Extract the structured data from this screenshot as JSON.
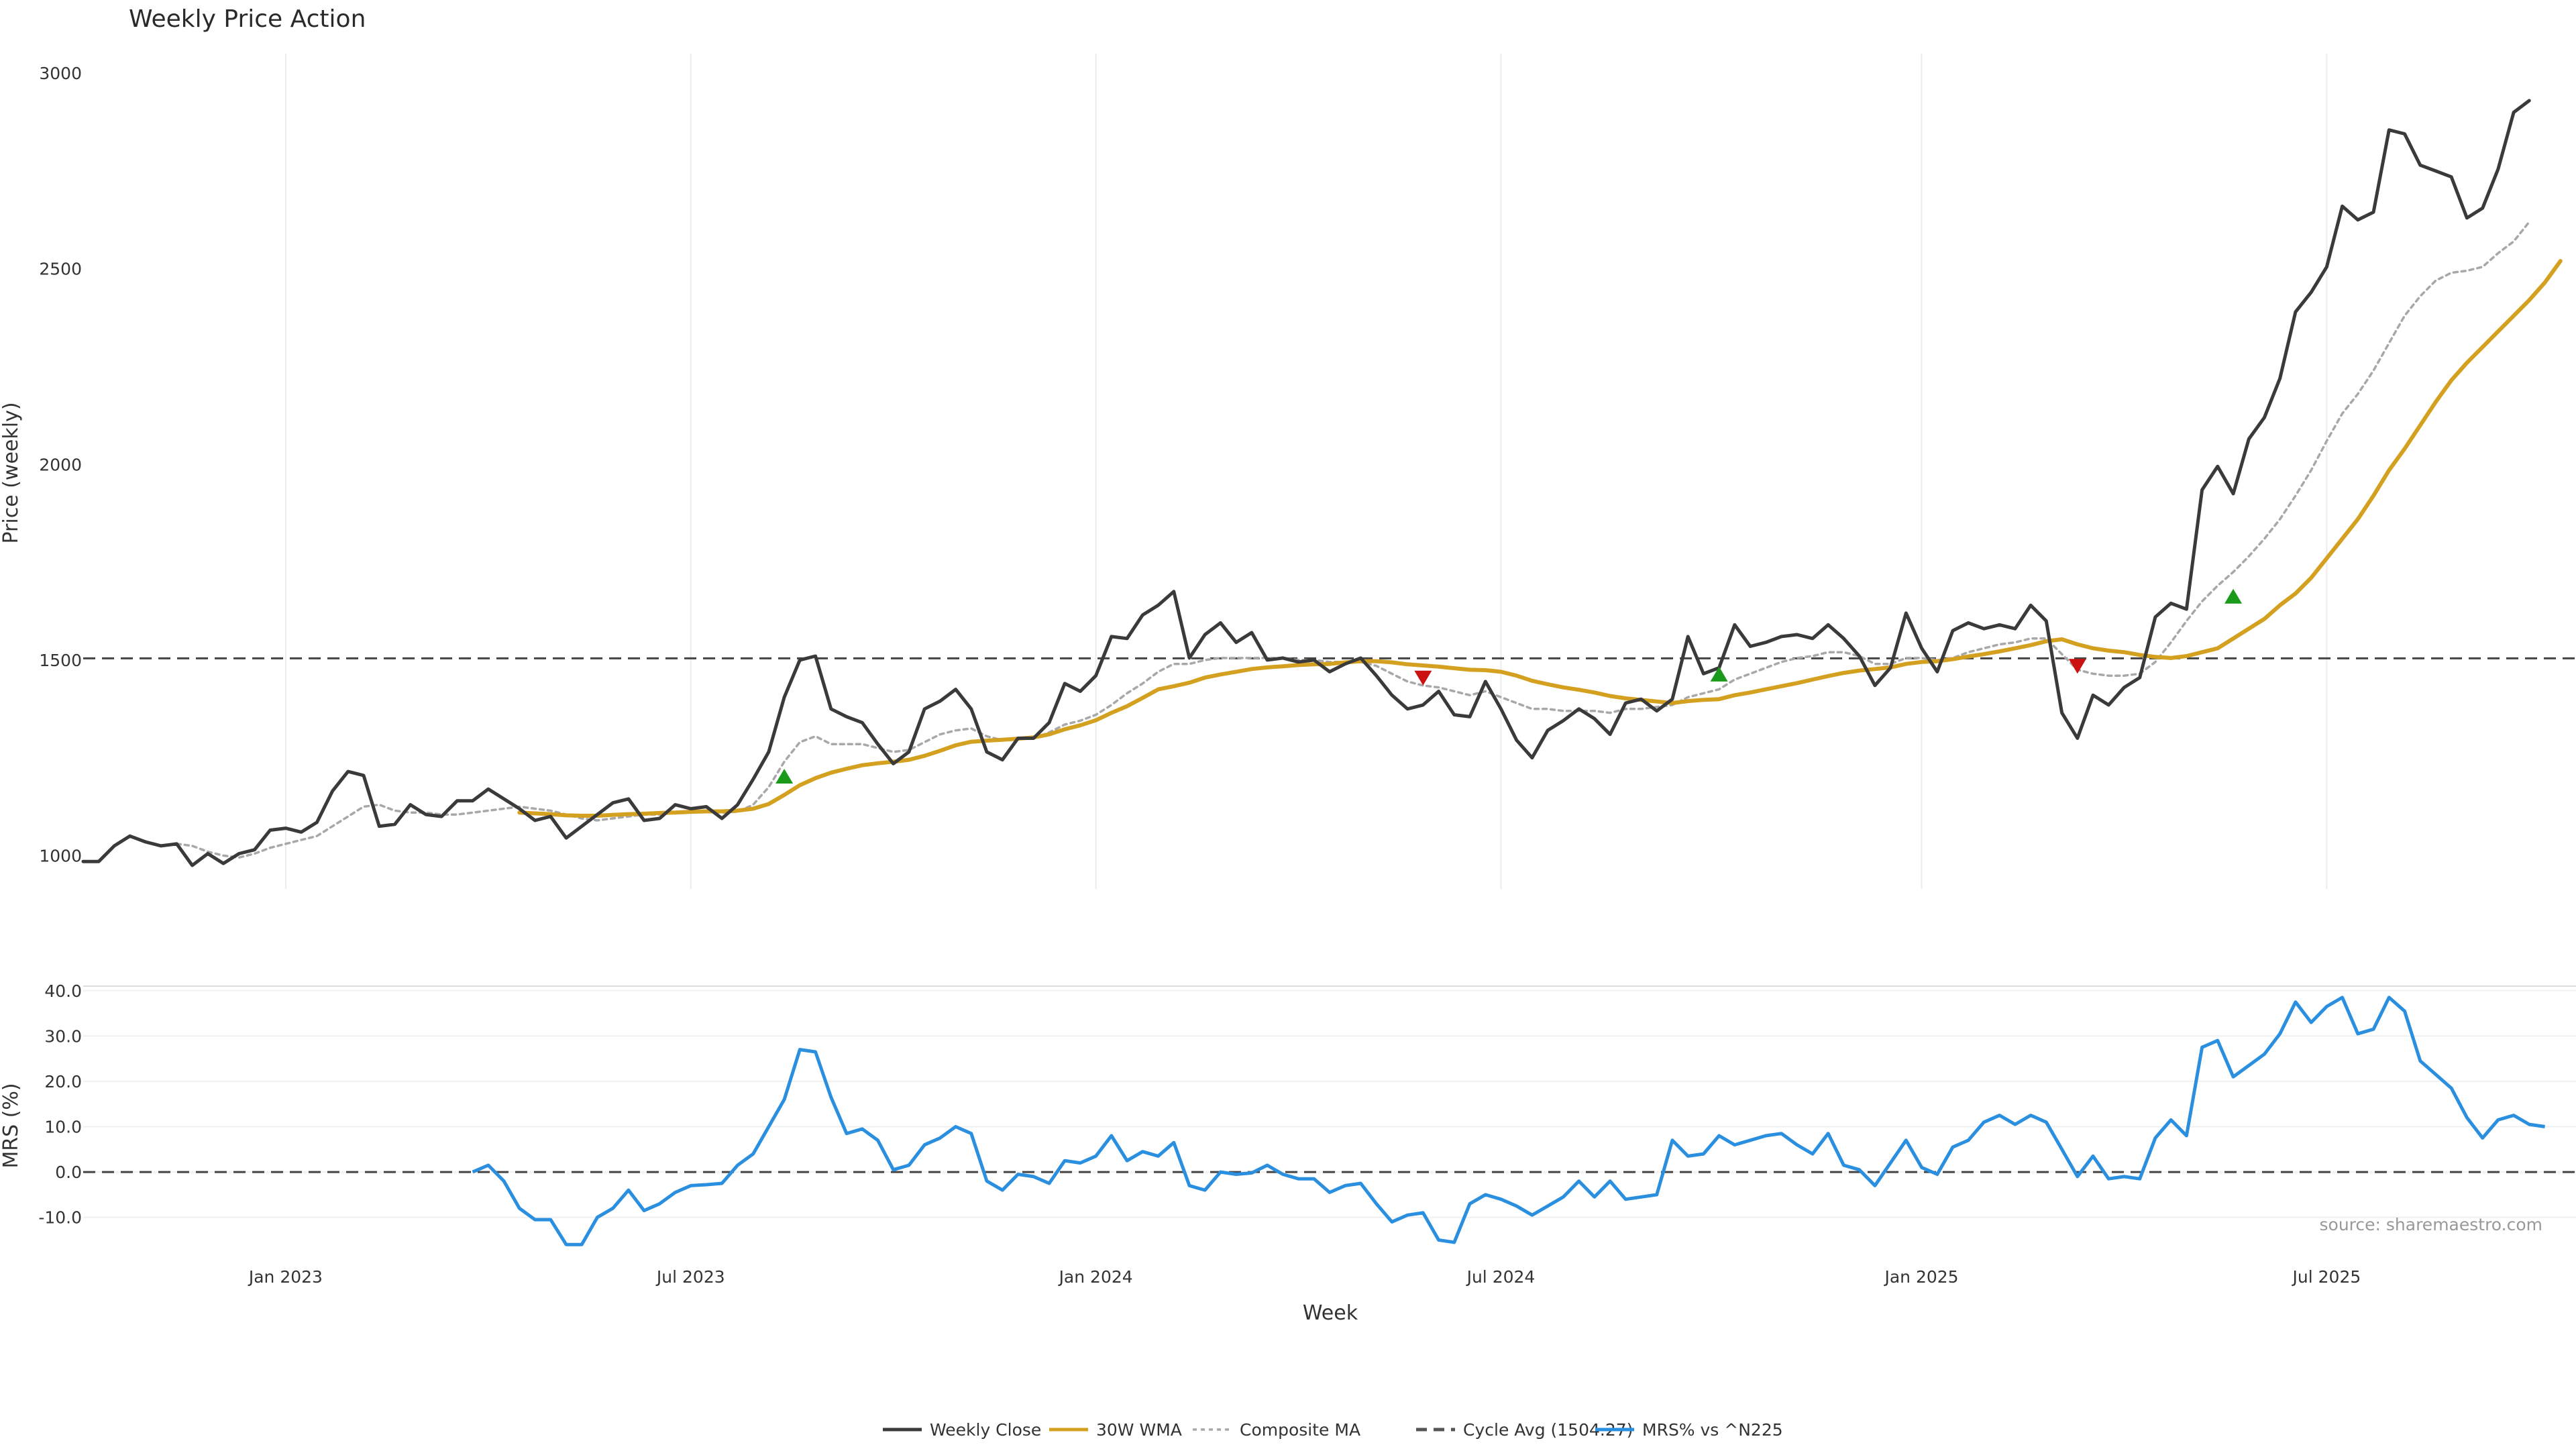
{
  "chart_data": [
    {
      "type": "line",
      "title": "Weekly Price Action",
      "ylabel": "Price (weekly)",
      "ylim": [
        915,
        3050
      ],
      "yticks": [
        1000,
        1500,
        2000,
        2500,
        3000
      ],
      "x_domain": [
        "2022-10-03",
        "2025-10-27"
      ],
      "x_step": "weekly",
      "grid": "vertical",
      "series": [
        {
          "name": "Weekly Close",
          "color": "#3a3a3a",
          "values": [
            985,
            985,
            1025,
            1050,
            1035,
            1025,
            1030,
            975,
            1005,
            980,
            1005,
            1015,
            1065,
            1070,
            1060,
            1085,
            1165,
            1215,
            1205,
            1075,
            1080,
            1130,
            1105,
            1100,
            1140,
            1140,
            1170,
            1145,
            1120,
            1090,
            1100,
            1045,
            1075,
            1105,
            1135,
            1145,
            1090,
            1095,
            1130,
            1120,
            1125,
            1095,
            1130,
            1195,
            1265,
            1405,
            1500,
            1510,
            1375,
            1355,
            1340,
            1285,
            1235,
            1265,
            1375,
            1395,
            1425,
            1375,
            1265,
            1245,
            1300,
            1300,
            1340,
            1440,
            1420,
            1460,
            1560,
            1555,
            1615,
            1640,
            1675,
            1505,
            1565,
            1595,
            1545,
            1570,
            1500,
            1505,
            1495,
            1500,
            1470,
            1490,
            1505,
            1460,
            1410,
            1375,
            1385,
            1420,
            1360,
            1355,
            1445,
            1375,
            1295,
            1250,
            1320,
            1345,
            1375,
            1350,
            1310,
            1390,
            1400,
            1370,
            1400,
            1560,
            1465,
            1480,
            1590,
            1535,
            1545,
            1560,
            1565,
            1555,
            1590,
            1555,
            1510,
            1435,
            1480,
            1620,
            1530,
            1470,
            1575,
            1595,
            1580,
            1590,
            1580,
            1640,
            1600,
            1365,
            1300,
            1410,
            1385,
            1430,
            1455,
            1610,
            1645,
            1630,
            1935,
            1995,
            1925,
            2065,
            2120,
            2220,
            2390,
            2440,
            2505,
            2660,
            2625,
            2645,
            2855,
            2845,
            2765,
            2750,
            2735,
            2630,
            2655,
            2755,
            2900,
            2930
          ]
        },
        {
          "name": "30W WMA",
          "color": "#d4a020",
          "values": [
            null,
            null,
            null,
            null,
            null,
            null,
            null,
            null,
            null,
            null,
            null,
            null,
            null,
            null,
            null,
            null,
            null,
            null,
            null,
            null,
            null,
            null,
            null,
            null,
            null,
            null,
            null,
            null,
            1110,
            1108,
            1106,
            1103,
            1102,
            1102,
            1104,
            1106,
            1107,
            1109,
            1110,
            1112,
            1113,
            1113,
            1115,
            1120,
            1132,
            1155,
            1180,
            1198,
            1212,
            1222,
            1231,
            1236,
            1240,
            1245,
            1255,
            1268,
            1282,
            1291,
            1294,
            1296,
            1299,
            1302,
            1310,
            1323,
            1333,
            1346,
            1365,
            1382,
            1403,
            1425,
            1433,
            1442,
            1455,
            1463,
            1470,
            1477,
            1481,
            1484,
            1487,
            1489,
            1490,
            1494,
            1497,
            1497,
            1494,
            1489,
            1486,
            1483,
            1479,
            1475,
            1474,
            1470,
            1460,
            1447,
            1438,
            1430,
            1424,
            1417,
            1408,
            1402,
            1398,
            1394,
            1390,
            1395,
            1398,
            1400,
            1410,
            1417,
            1425,
            1433,
            1441,
            1450,
            1459,
            1467,
            1473,
            1477,
            1481,
            1490,
            1495,
            1497,
            1502,
            1509,
            1515,
            1522,
            1530,
            1538,
            1548,
            1553,
            1540,
            1530,
            1524,
            1520,
            1513,
            1508,
            1505,
            1510,
            1520,
            1530,
            1555,
            1580,
            1605,
            1640,
            1670,
            1710,
            1760,
            1810,
            1860,
            1920,
            1985,
            2040,
            2100,
            2160,
            2215,
            2260,
            2300,
            2340,
            2380,
            2420,
            2465,
            2520
          ]
        },
        {
          "name": "Composite MA",
          "color": "#a8a8a8",
          "values": [
            null,
            null,
            null,
            null,
            null,
            null,
            1030,
            1025,
            1010,
            1000,
            995,
            1005,
            1020,
            1030,
            1040,
            1050,
            1075,
            1100,
            1125,
            1130,
            1115,
            1110,
            1110,
            1105,
            1105,
            1110,
            1115,
            1120,
            1125,
            1120,
            1115,
            1105,
            1095,
            1090,
            1095,
            1100,
            1105,
            1105,
            1110,
            1110,
            1112,
            1110,
            1112,
            1130,
            1175,
            1240,
            1290,
            1305,
            1285,
            1285,
            1285,
            1275,
            1265,
            1270,
            1290,
            1310,
            1320,
            1325,
            1305,
            1295,
            1300,
            1300,
            1315,
            1335,
            1345,
            1360,
            1385,
            1415,
            1440,
            1470,
            1490,
            1490,
            1500,
            1505,
            1505,
            1505,
            1505,
            1505,
            1500,
            1500,
            1495,
            1495,
            1495,
            1485,
            1465,
            1445,
            1435,
            1430,
            1420,
            1410,
            1420,
            1405,
            1390,
            1375,
            1375,
            1370,
            1370,
            1370,
            1365,
            1375,
            1375,
            1380,
            1385,
            1405,
            1415,
            1425,
            1450,
            1465,
            1480,
            1495,
            1505,
            1510,
            1520,
            1520,
            1510,
            1490,
            1490,
            1505,
            1505,
            1500,
            1505,
            1520,
            1530,
            1540,
            1545,
            1555,
            1555,
            1515,
            1475,
            1465,
            1460,
            1460,
            1465,
            1495,
            1545,
            1600,
            1650,
            1690,
            1725,
            1765,
            1810,
            1860,
            1920,
            1985,
            2060,
            2130,
            2180,
            2240,
            2310,
            2380,
            2430,
            2470,
            2490,
            2495,
            2505,
            2540,
            2570,
            2620
          ]
        }
      ],
      "reference_line": {
        "name": "Cycle Avg (1504.27)",
        "value": 1504.27
      },
      "markers": [
        {
          "type": "buy",
          "color": "#1a9a1a",
          "index": 45,
          "value": 1202
        },
        {
          "type": "sell",
          "color": "#cc1111",
          "index": 86,
          "value": 1455
        },
        {
          "type": "buy",
          "color": "#1a9a1a",
          "index": 105,
          "value": 1463
        },
        {
          "type": "sell",
          "color": "#cc1111",
          "index": 128,
          "value": 1485
        },
        {
          "type": "buy",
          "color": "#1a9a1a",
          "index": 138,
          "value": 1662
        }
      ]
    },
    {
      "type": "line",
      "ylabel": "MRS (%)",
      "xlabel": "Week",
      "ylim": [
        -17,
        41
      ],
      "yticks": [
        "40.0",
        "30.0",
        "20.0",
        "10.0",
        "0.0",
        "-10.0"
      ],
      "x_ticks": [
        "Jan 2023",
        "Jul 2023",
        "Jan 2024",
        "Jul 2024",
        "Jan 2025",
        "Jul 2025"
      ],
      "series": [
        {
          "name": "MRS% vs ^N225",
          "color": "#2b8fe0",
          "start_index": 25,
          "values": [
            0,
            1.5,
            -2,
            -8,
            -10.5,
            -10.5,
            -16,
            -16,
            -10,
            -8,
            -4,
            -8.5,
            -7,
            -4.5,
            -3,
            -2.8,
            -2.5,
            1.5,
            4,
            10,
            16,
            27,
            26.5,
            16.5,
            8.5,
            9.5,
            7,
            0.5,
            1.5,
            6,
            7.5,
            10,
            8.5,
            -2,
            -4,
            -0.5,
            -1,
            -2.5,
            2.5,
            2,
            3.5,
            8,
            2.5,
            4.5,
            3.5,
            6.5,
            -3,
            -4,
            0,
            -0.5,
            -0.2,
            1.5,
            -0.5,
            -1.5,
            -1.5,
            -4.5,
            -3,
            -2.5,
            -7,
            -11,
            -9.5,
            -9,
            -15,
            -15.5,
            -7,
            -5,
            -6,
            -7.5,
            -9.5,
            -7.5,
            -5.5,
            -2,
            -5.5,
            -2,
            -6,
            -5.5,
            -5,
            7,
            3.5,
            4,
            8,
            6,
            7,
            8,
            8.5,
            6,
            4,
            8.5,
            1.5,
            0.5,
            -3,
            2,
            7,
            1,
            -0.5,
            5.5,
            7,
            11,
            12.5,
            10.5,
            12.5,
            11,
            5,
            -1,
            3.5,
            -1.5,
            -1,
            -1.5,
            7.5,
            11.5,
            8,
            27.5,
            29,
            21,
            23.5,
            26,
            30.5,
            37.5,
            33,
            36.5,
            38.5,
            30.5,
            31.5,
            38.5,
            35.5,
            24.5,
            21.5,
            18.5,
            12,
            7.5,
            11.5,
            12.5,
            10.5,
            10
          ]
        }
      ],
      "reference_line": {
        "value": 0
      },
      "annotation": "source: sharemaestro.com"
    }
  ],
  "legend": {
    "position": "bottom-center",
    "entries": [
      {
        "label": "Weekly Close",
        "color": "#3a3a3a",
        "dash": "solid"
      },
      {
        "label": "30W WMA",
        "color": "#d4a020",
        "dash": "solid"
      },
      {
        "label": "Composite MA",
        "color": "#a8a8a8",
        "dash": "dotted"
      },
      {
        "label": "Cycle Avg (1504.27)",
        "color": "#555555",
        "dash": "dashed"
      },
      {
        "label": "MRS% vs ^N225",
        "color": "#2b8fe0",
        "dash": "solid"
      }
    ]
  }
}
